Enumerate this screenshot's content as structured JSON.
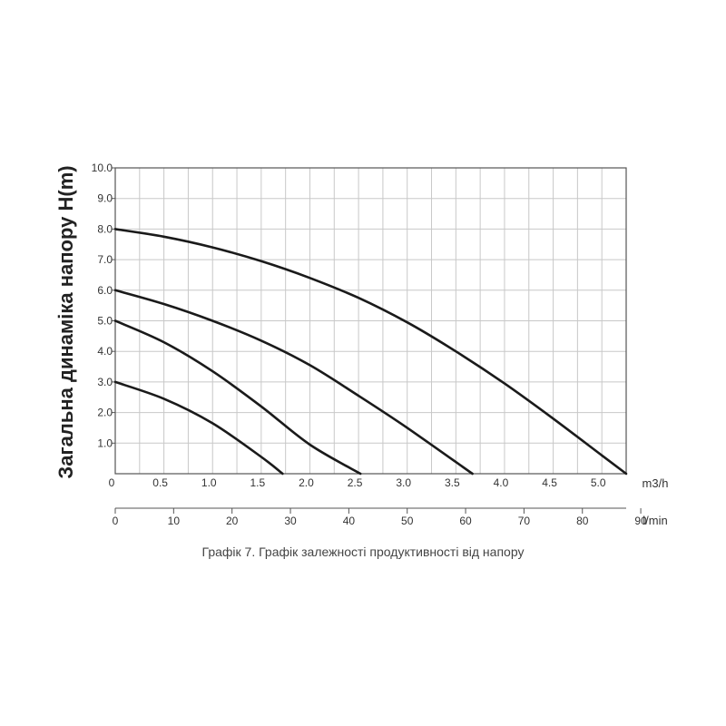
{
  "chart_data": {
    "type": "line",
    "caption": "Графік 7. Графік залежності продуктивності від напору",
    "ylabel": "Загальна динаміка напору H(m)",
    "x_unit": "m3/h",
    "x2_unit": "l/min",
    "xlim": [
      0,
      5.25
    ],
    "ylim": [
      0,
      10
    ],
    "x_ticks": [
      "0",
      "0.5",
      "1.0",
      "1.5",
      "2.0",
      "2.5",
      "3.0",
      "3.5",
      "4.0",
      "4.5",
      "5.0"
    ],
    "x2_ticks": [
      "0",
      "10",
      "20",
      "30",
      "40",
      "50",
      "60",
      "70",
      "80",
      "90"
    ],
    "y_ticks": [
      "1.0",
      "2.0",
      "3.0",
      "4.0",
      "5.0",
      "6.0",
      "7.0",
      "8.0",
      "9.0",
      "10.0"
    ],
    "grid": true,
    "series": [
      {
        "x": [
          0,
          0.5,
          1.0,
          1.5,
          1.72
        ],
        "y": [
          3.0,
          2.45,
          1.65,
          0.55,
          0.0
        ]
      },
      {
        "x": [
          0,
          0.5,
          1.0,
          1.5,
          2.0,
          2.52
        ],
        "y": [
          5.0,
          4.3,
          3.35,
          2.2,
          0.95,
          0.0
        ]
      },
      {
        "x": [
          0,
          0.5,
          1.0,
          1.5,
          2.0,
          2.5,
          3.0,
          3.67
        ],
        "y": [
          6.0,
          5.55,
          5.0,
          4.35,
          3.55,
          2.55,
          1.5,
          0.0
        ]
      },
      {
        "x": [
          0,
          0.5,
          1.0,
          1.5,
          2.0,
          2.5,
          3.0,
          3.5,
          4.0,
          4.5,
          5.0,
          5.25
        ],
        "y": [
          8.0,
          7.75,
          7.4,
          6.95,
          6.4,
          5.75,
          4.95,
          4.0,
          2.95,
          1.8,
          0.6,
          0.0
        ]
      }
    ],
    "colors": {
      "line": "#1a1a1a",
      "grid": "#c8c8c8",
      "frame": "#555555"
    }
  }
}
